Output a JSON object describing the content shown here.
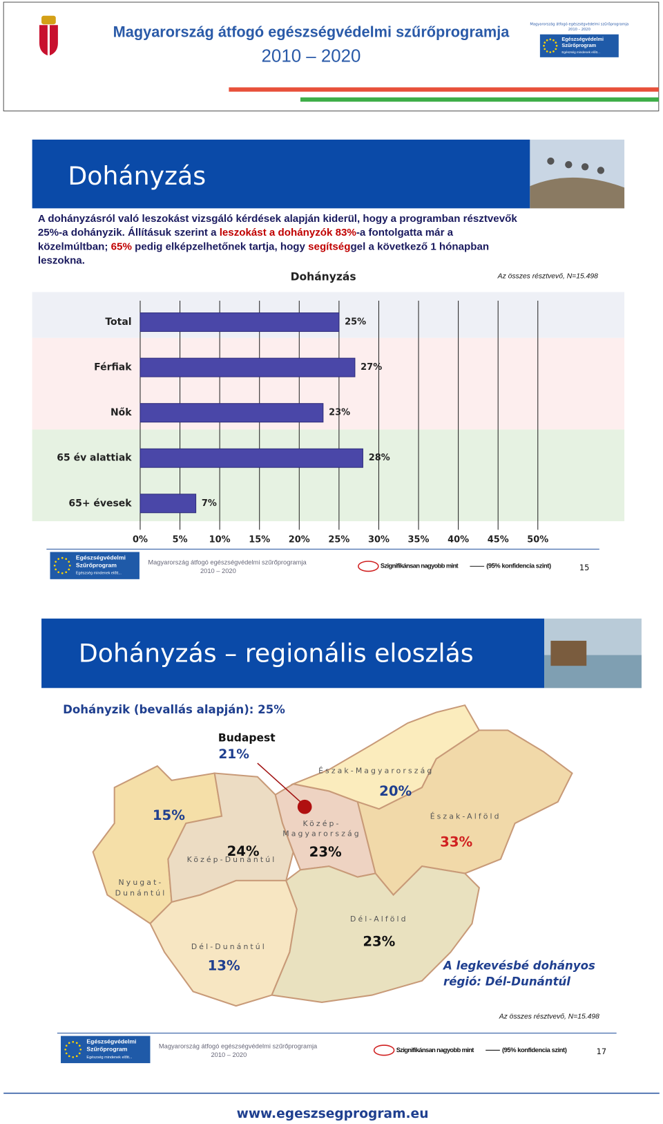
{
  "header": {
    "title": "Magyarország átfogó egészségvédelmi szűrőprogramja",
    "years": "2010 – 2020",
    "logo_caption": "Magyarország átfogó egészségvédelmi szűrőprogramja",
    "logo_years": "2010 – 2020",
    "logo_lines": [
      "Egészségvédelmi",
      "Szűrőprogram",
      "Egészség mindenek előtt..."
    ]
  },
  "slide1": {
    "title": "Dohányzás",
    "paragraph": [
      [
        {
          "text": "A dohányzásról való leszokást vizsgáló kérdések alapján kiderül, hogy a programban résztvevők",
          "color": "#1a1a5e"
        }
      ],
      [
        {
          "text": "25%-a dohányzik. Állításuk szerint a ",
          "color": "#1a1a5e"
        },
        {
          "text": "leszokást a dohányzók 83%",
          "color": "#c00000"
        },
        {
          "text": "-a fontolgatta már a",
          "color": "#1a1a5e"
        }
      ],
      [
        {
          "text": "közelmúltban; ",
          "color": "#1a1a5e"
        },
        {
          "text": "65%",
          "color": "#c00000"
        },
        {
          "text": " pedig elképzelhetőnek tartja, hogy ",
          "color": "#1a1a5e"
        },
        {
          "text": "segítség",
          "color": "#c00000"
        },
        {
          "text": "gel a következő 1 hónapban",
          "color": "#1a1a5e"
        }
      ],
      [
        {
          "text": "leszokna.",
          "color": "#1a1a5e"
        }
      ]
    ],
    "footer": {
      "logo_lines": [
        "Egészségvédelmi",
        "Szűrőprogram",
        "Egészség mindenek előtt..."
      ],
      "program": "Magyarország átfogó egészségvédelmi szűrőprogramja",
      "years": "2010 – 2020",
      "legend_significant": "Szignifikánsan nagyobb mint",
      "legend_confidence": "(95% konfidencia szint)",
      "page": "15"
    }
  },
  "chart_data": {
    "type": "bar",
    "orientation": "horizontal",
    "title": "Dohányzás",
    "note": "Az összes résztvevő, N=15.498",
    "categories": [
      "Total",
      "Férfiak",
      "Nők",
      "65 év alattiak",
      "65+ évesek"
    ],
    "values": [
      25,
      27,
      23,
      28,
      7
    ],
    "value_labels": [
      "25%",
      "27%",
      "23%",
      "28%",
      "7%"
    ],
    "color": "#4a47a8",
    "xlim": [
      0,
      50
    ],
    "xticks": [
      {
        "value": 0,
        "label": "0%"
      },
      {
        "value": 5,
        "label": "5%"
      },
      {
        "value": 10,
        "label": "10%"
      },
      {
        "value": 15,
        "label": "15%"
      },
      {
        "value": 20,
        "label": "20%"
      },
      {
        "value": 25,
        "label": "25%"
      },
      {
        "value": 30,
        "label": "30%"
      },
      {
        "value": 35,
        "label": "35%"
      },
      {
        "value": 40,
        "label": "40%"
      },
      {
        "value": 45,
        "label": "45%"
      },
      {
        "value": 50,
        "label": "50%"
      }
    ],
    "grid": true
  },
  "slide2": {
    "title": "Dohányzás – regionális eloszlás",
    "subtitle": "Dohányzik (bevallás alapján): 25%",
    "budapest": {
      "name": "Budapest",
      "value": "21%"
    },
    "regions": [
      {
        "name": [
          "Észak-Magyarország"
        ],
        "value": "20%"
      },
      {
        "name": [
          "Észak-Alföld"
        ],
        "value": "33%"
      },
      {
        "name": [
          "Közép-",
          "Magyarország"
        ],
        "value": "23%"
      },
      {
        "name": [
          "Közép-Dunántúl"
        ],
        "value": "24%"
      },
      {
        "name": [
          "Nyugat-",
          "Dunántúl"
        ],
        "value": "15%"
      },
      {
        "name": [
          "Dél-Dunántúl"
        ],
        "value": "13%"
      },
      {
        "name": [
          "Dél-Alföld"
        ],
        "value": "23%"
      }
    ],
    "highlight": [
      "A legkevésbé dohányos",
      "régió: Dél-Dunántúl"
    ],
    "note": "Az összes résztvevő, N=15.498",
    "footer": {
      "logo_lines": [
        "Egészségvédelmi",
        "Szűrőprogram",
        "Egészség mindenek előtt..."
      ],
      "program": "Magyarország átfogó egészségvédelmi szűrőprogramja",
      "years": "2010 – 2020",
      "legend_significant": "Szignifikánsan nagyobb mint",
      "legend_confidence": "(95% konfidencia szint)",
      "page": "17"
    }
  },
  "website": "www.egeszsegprogram.eu"
}
